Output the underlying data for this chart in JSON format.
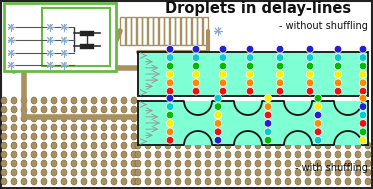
{
  "title": "Droplets in delay-lines",
  "label_no_shuffle": "- without shuffling",
  "label_shuffle": "- with shuffling",
  "channel_color": "#7fffd4",
  "wall_color": "#a89060",
  "chip_bg": "#ffffff",
  "chip_border": "#66bb44",
  "snowflake_color": "#88aacc",
  "pipe_color": "#a89060",
  "droplet_colors": [
    "#ee1111",
    "#ff8800",
    "#ffee00",
    "#00bb00",
    "#00cccc",
    "#2222cc"
  ],
  "figsize": [
    3.73,
    1.89
  ],
  "dpi": 100
}
